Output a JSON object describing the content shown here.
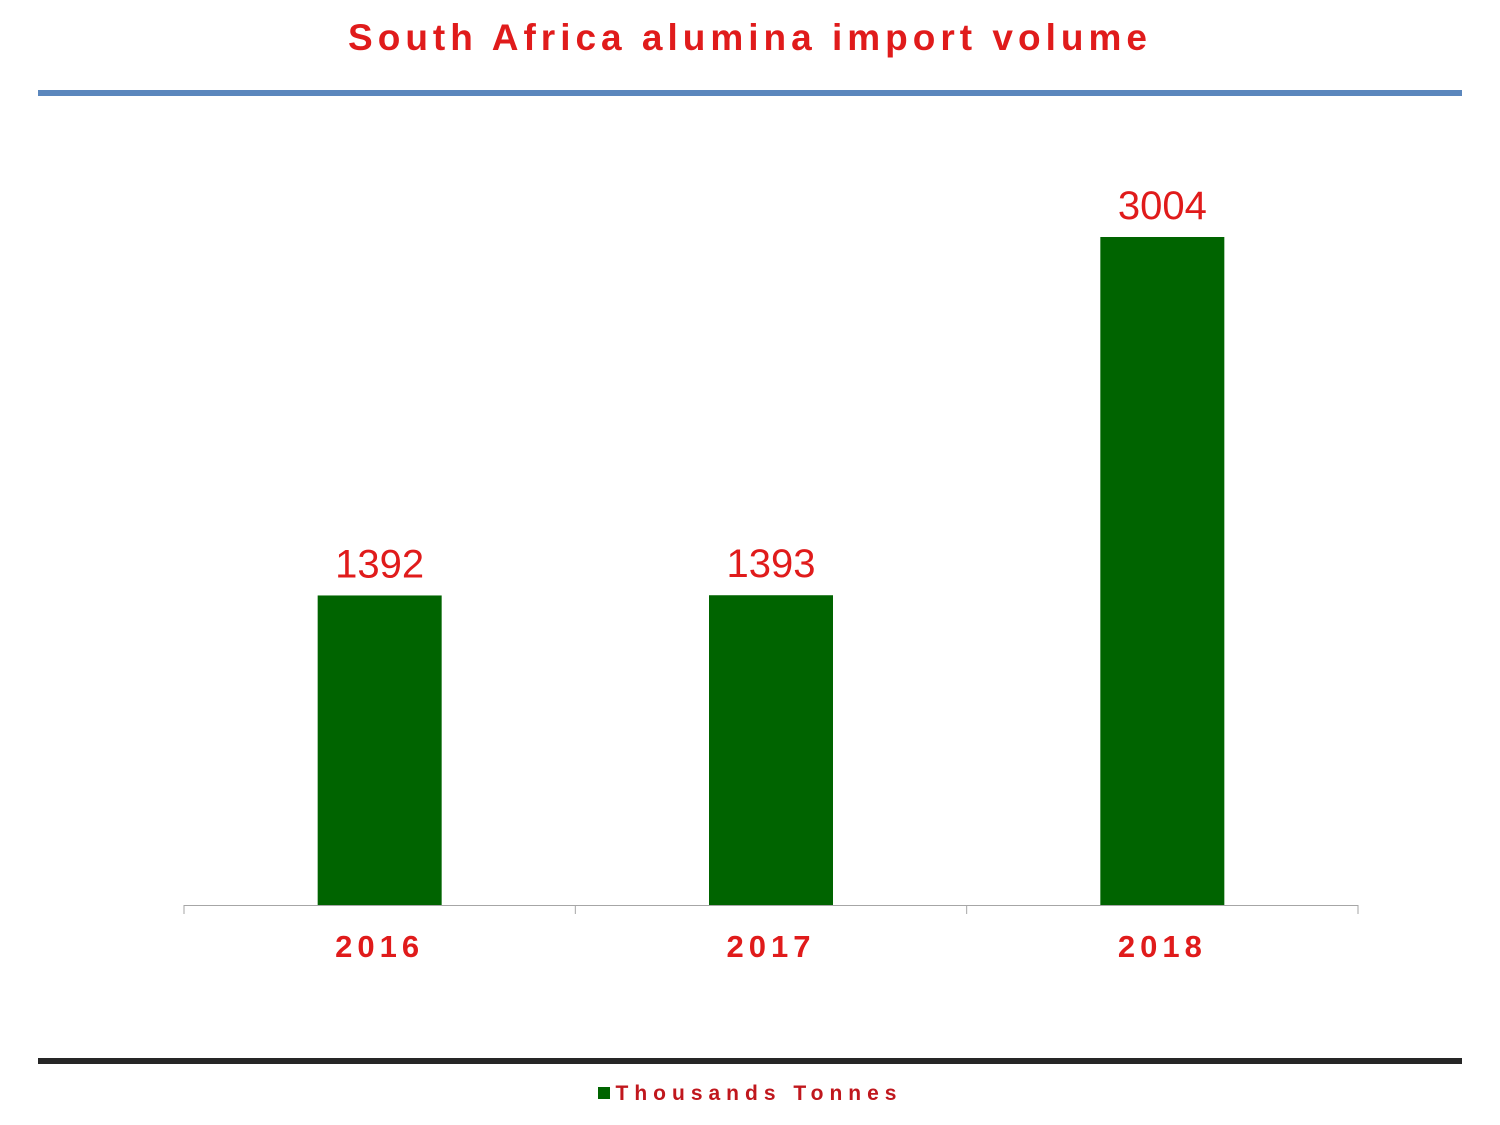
{
  "chart_data": {
    "type": "bar",
    "title": "South Africa alumina import volume",
    "categories": [
      "2016",
      "2017",
      "2018"
    ],
    "series": [
      {
        "name": "Thousands Tonnes",
        "values": [
          1392,
          1393,
          3004
        ]
      }
    ],
    "xlabel": "",
    "ylabel": "",
    "ylim": [
      0,
      3600
    ],
    "grid": false,
    "legend_position": "bottom",
    "data_labels": true,
    "colors": {
      "bar": "#006400",
      "title": "#e01b1b",
      "data_label": "#e01b1b",
      "tick_label": "#e01b1b",
      "legend_label": "#c0171d",
      "axis_line": "#a6a6a6",
      "top_rule": "#5b87bd",
      "bottom_rule": "#262626"
    }
  }
}
